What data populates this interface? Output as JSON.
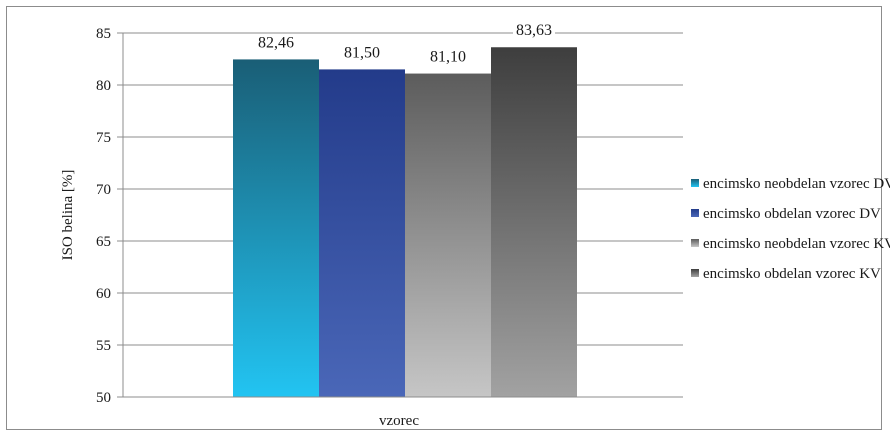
{
  "chart_data": {
    "type": "bar",
    "categories": [
      "vzorec"
    ],
    "series": [
      {
        "name": "encimsko neobdelan vzorec DV",
        "value": 82.46,
        "label": "82,46",
        "color_top": "#1a5e76",
        "color_bottom": "#22c4f2"
      },
      {
        "name": "encimsko obdelan vzorec DV",
        "value": 81.5,
        "label": "81,50",
        "color_top": "#233b8a",
        "color_bottom": "#4a67b8"
      },
      {
        "name": "encimsko neobdelan vzorec KV",
        "value": 81.1,
        "label": "81,10",
        "color_top": "#5c5c5c",
        "color_bottom": "#c6c6c6"
      },
      {
        "name": "encimsko obdelan vzorec KV",
        "value": 83.63,
        "label": "83,63",
        "color_top": "#3e3e3e",
        "color_bottom": "#a2a2a2"
      }
    ],
    "xlabel": "vzorec",
    "ylabel": "ISO belina [%]",
    "ylim": [
      50,
      85
    ],
    "yticks": [
      50,
      55,
      60,
      65,
      70,
      75,
      80,
      85
    ],
    "grid": true,
    "legend_position": "right"
  }
}
